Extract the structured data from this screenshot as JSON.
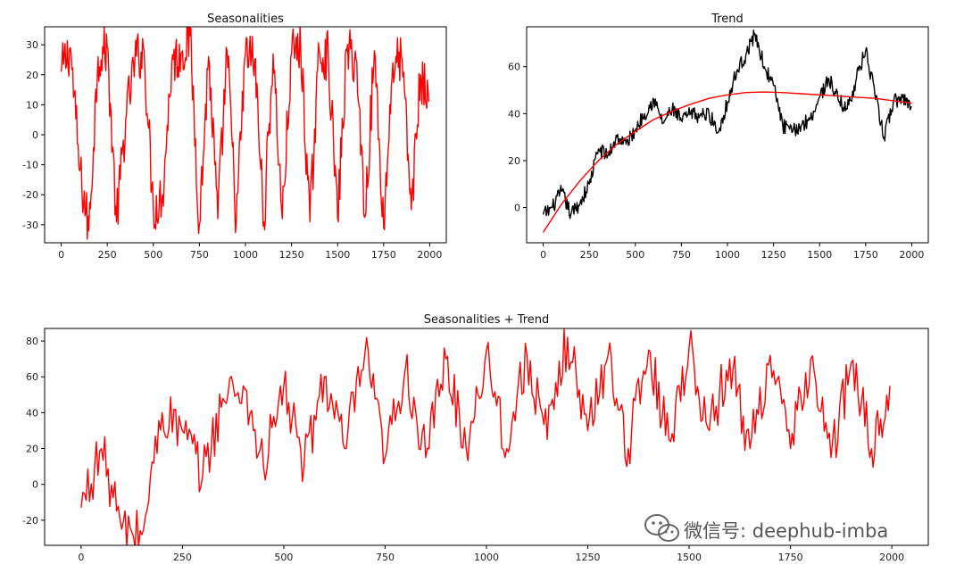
{
  "watermark": {
    "text": "微信号: deephub-imba",
    "icon": "wechat-icon"
  },
  "chart_data": [
    {
      "type": "line",
      "title": "Seasonalities",
      "xlim": [
        -90,
        2090
      ],
      "ylim": [
        -36,
        36
      ],
      "xticks": [
        0,
        250,
        500,
        750,
        1000,
        1250,
        1500,
        1750,
        2000
      ],
      "yticks": [
        -30,
        -20,
        -10,
        0,
        10,
        20,
        30
      ],
      "grid": false,
      "series": [
        {
          "color": "#ff0000",
          "x": [
            0,
            50,
            100,
            150,
            200,
            250,
            300,
            350,
            400,
            450,
            500,
            550,
            600,
            650,
            700,
            750,
            800,
            850,
            900,
            950,
            1000,
            1050,
            1100,
            1150,
            1200,
            1250,
            1300,
            1350,
            1400,
            1450,
            1500,
            1550,
            1600,
            1650,
            1700,
            1750,
            1800,
            1850,
            1900,
            1950,
            1995
          ],
          "y": [
            21,
            29,
            -12,
            -32,
            26,
            29,
            -29,
            5,
            25,
            28,
            -25,
            -20,
            24,
            27,
            33,
            -30,
            26,
            -28,
            28,
            -29,
            27,
            25,
            -29,
            27,
            -28,
            27,
            29,
            -29,
            28,
            26,
            -28,
            28,
            25,
            -27,
            28,
            -31,
            24,
            25,
            -25,
            20,
            11
          ]
        }
      ]
    },
    {
      "type": "line",
      "title": "Trend",
      "xlim": [
        -90,
        2090
      ],
      "ylim": [
        -15,
        77
      ],
      "xticks": [
        0,
        250,
        500,
        750,
        1000,
        1250,
        1500,
        1750,
        2000
      ],
      "yticks": [
        0,
        20,
        40,
        60
      ],
      "grid": false,
      "series": [
        {
          "color": "#000000",
          "x": [
            0,
            50,
            100,
            150,
            200,
            250,
            300,
            350,
            400,
            450,
            500,
            550,
            600,
            650,
            700,
            750,
            800,
            850,
            900,
            950,
            1000,
            1050,
            1100,
            1150,
            1200,
            1250,
            1300,
            1350,
            1400,
            1450,
            1500,
            1550,
            1600,
            1650,
            1700,
            1750,
            1800,
            1850,
            1900,
            1950,
            2000
          ],
          "y": [
            -3,
            0,
            7,
            -3,
            2,
            10,
            25,
            22,
            30,
            27,
            33,
            40,
            46,
            36,
            42,
            37,
            40,
            39,
            40,
            32,
            45,
            58,
            65,
            74,
            60,
            52,
            35,
            32,
            35,
            38,
            47,
            55,
            46,
            42,
            55,
            67,
            48,
            30,
            45,
            47,
            43
          ]
        },
        {
          "color": "#ff0000",
          "x": [
            0,
            100,
            200,
            300,
            400,
            500,
            600,
            700,
            800,
            900,
            1000,
            1100,
            1200,
            1300,
            1400,
            1500,
            1600,
            1700,
            1800,
            1900,
            2000
          ],
          "y": [
            -10.5,
            1.5,
            11.5,
            20,
            27,
            32.5,
            37.5,
            41,
            44,
            46.5,
            48,
            49,
            49.2,
            49,
            48.5,
            48,
            47.5,
            47,
            46.5,
            45.5,
            44.5
          ]
        }
      ]
    },
    {
      "type": "line",
      "title": "Seasonalities + Trend",
      "xlim": [
        -90,
        2090
      ],
      "ylim": [
        -34,
        87
      ],
      "xticks": [
        0,
        250,
        500,
        750,
        1000,
        1250,
        1500,
        1750,
        2000
      ],
      "yticks": [
        -20,
        0,
        20,
        40,
        60,
        80
      ],
      "grid": false,
      "series": [
        {
          "color": "#ff0000",
          "x": [
            0,
            50,
            100,
            150,
            200,
            250,
            300,
            350,
            400,
            450,
            500,
            550,
            600,
            650,
            700,
            750,
            800,
            850,
            900,
            950,
            1000,
            1050,
            1100,
            1150,
            1200,
            1250,
            1300,
            1350,
            1400,
            1450,
            1500,
            1550,
            1600,
            1650,
            1700,
            1750,
            1800,
            1850,
            1900,
            1950,
            1995
          ],
          "y": [
            -13,
            20,
            -25,
            -28,
            40,
            30,
            5,
            48,
            55,
            10,
            55,
            10,
            60,
            20,
            73,
            15,
            65,
            15,
            70,
            20,
            75,
            20,
            72,
            25,
            82,
            30,
            72,
            20,
            75,
            25,
            77,
            30,
            70,
            20,
            72,
            20,
            70,
            15,
            68,
            20,
            55
          ]
        }
      ]
    }
  ]
}
